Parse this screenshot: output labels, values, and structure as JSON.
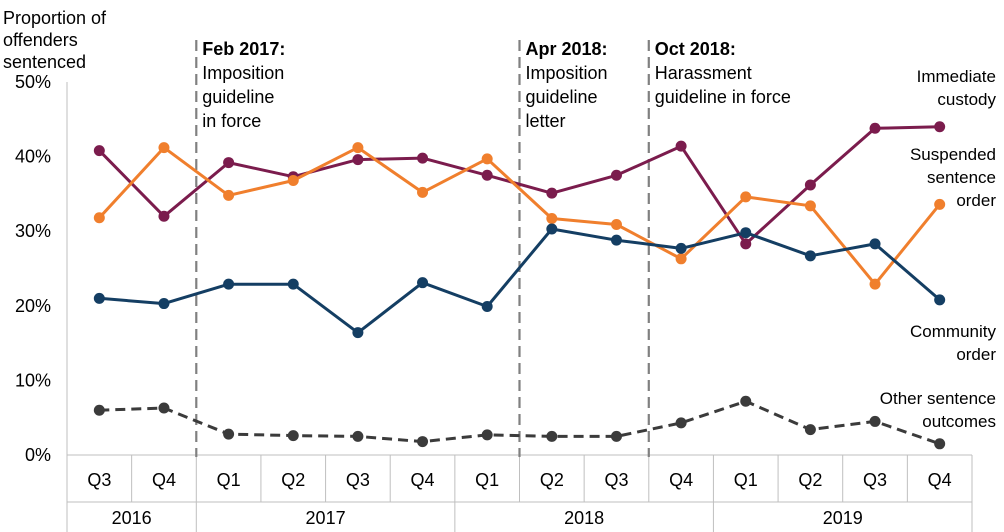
{
  "chart_data": {
    "type": "line",
    "ylabel": [
      "Proportion of",
      "offenders",
      "sentenced"
    ],
    "ylim": [
      0,
      50
    ],
    "y_ticks": [
      "0%",
      "10%",
      "20%",
      "30%",
      "40%",
      "50%"
    ],
    "categories": [
      "Q3",
      "Q4",
      "Q1",
      "Q2",
      "Q3",
      "Q4",
      "Q1",
      "Q2",
      "Q3",
      "Q4",
      "Q1",
      "Q2",
      "Q3",
      "Q4"
    ],
    "years": [
      {
        "label": "2016",
        "span": 2
      },
      {
        "label": "2017",
        "span": 4
      },
      {
        "label": "2018",
        "span": 4
      },
      {
        "label": "2019",
        "span": 4
      }
    ],
    "grid": false,
    "series": [
      {
        "name": [
          "Immediate",
          "custody"
        ],
        "color": "#7b1c4d",
        "dashed": false,
        "values": [
          40.8,
          32.0,
          39.2,
          37.3,
          39.6,
          39.8,
          37.5,
          35.1,
          37.5,
          41.4,
          28.3,
          36.2,
          43.8,
          44.0
        ]
      },
      {
        "name": [
          "Suspended",
          "sentence",
          "order"
        ],
        "color": "#f07f2d",
        "dashed": false,
        "values": [
          31.8,
          41.2,
          34.8,
          36.8,
          41.2,
          35.2,
          39.7,
          31.7,
          30.9,
          26.3,
          34.6,
          33.4,
          22.9,
          33.6
        ]
      },
      {
        "name": [
          "Community",
          "order"
        ],
        "color": "#143e63",
        "dashed": false,
        "values": [
          21.0,
          20.3,
          22.9,
          22.9,
          16.4,
          23.1,
          19.9,
          30.3,
          28.8,
          27.7,
          29.8,
          26.7,
          28.3,
          20.8
        ]
      },
      {
        "name": [
          "Other sentence",
          "outcomes"
        ],
        "color": "#3b3b3b",
        "dashed": true,
        "values": [
          6.0,
          6.3,
          2.8,
          2.6,
          2.5,
          1.8,
          2.7,
          2.5,
          2.5,
          4.3,
          7.2,
          3.4,
          4.5,
          1.5
        ]
      }
    ],
    "annotations": [
      {
        "after_index": 2,
        "title": "Feb 2017:",
        "lines": [
          "Imposition",
          "guideline",
          "in force"
        ]
      },
      {
        "after_index": 7,
        "title": "Apr 2018:",
        "lines": [
          "Imposition",
          "guideline",
          "letter"
        ]
      },
      {
        "after_index": 9,
        "title": "Oct 2018:",
        "lines": [
          "Harassment",
          "guideline in force"
        ]
      }
    ]
  }
}
